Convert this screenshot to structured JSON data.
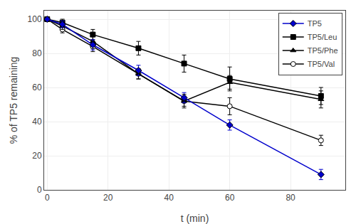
{
  "chart_data": {
    "type": "line",
    "xlabel": "t (min)",
    "ylabel": "% of TP5 remaining",
    "xlim": [
      -1,
      98
    ],
    "ylim": [
      0,
      105
    ],
    "xticks": [
      0,
      20,
      40,
      60,
      80
    ],
    "yticks": [
      0,
      20,
      40,
      60,
      80,
      100
    ],
    "legend": "upper right",
    "series": [
      {
        "name": "TP5",
        "color": "#0000cc",
        "marker": "diamond",
        "x": [
          0,
          5,
          15,
          30,
          45,
          60,
          90
        ],
        "values": [
          100,
          97,
          85,
          70,
          54,
          38,
          9
        ],
        "yerr": [
          0,
          2,
          3,
          3,
          3,
          3,
          3
        ]
      },
      {
        "name": "TP5/Leu",
        "color": "#000000",
        "marker": "square",
        "x": [
          0,
          5,
          15,
          30,
          45,
          60,
          90
        ],
        "values": [
          100,
          98,
          91,
          83,
          74,
          65,
          55
        ],
        "yerr": [
          0,
          2,
          3,
          4,
          5,
          7,
          5
        ]
      },
      {
        "name": "TP5/Phe",
        "color": "#000000",
        "marker": "triangle-up",
        "x": [
          0,
          5,
          15,
          30,
          45,
          60,
          90
        ],
        "values": [
          100,
          96,
          87,
          68,
          52,
          63,
          53
        ],
        "yerr": [
          0,
          2,
          3,
          3,
          4,
          4,
          5
        ]
      },
      {
        "name": "TP5/Val",
        "color": "#000000",
        "marker": "circle-open",
        "x": [
          0,
          5,
          15,
          30,
          45,
          60,
          90
        ],
        "values": [
          100,
          94,
          84,
          68,
          52,
          49,
          29
        ],
        "yerr": [
          0,
          2,
          3,
          3,
          3,
          5,
          3
        ]
      }
    ]
  }
}
